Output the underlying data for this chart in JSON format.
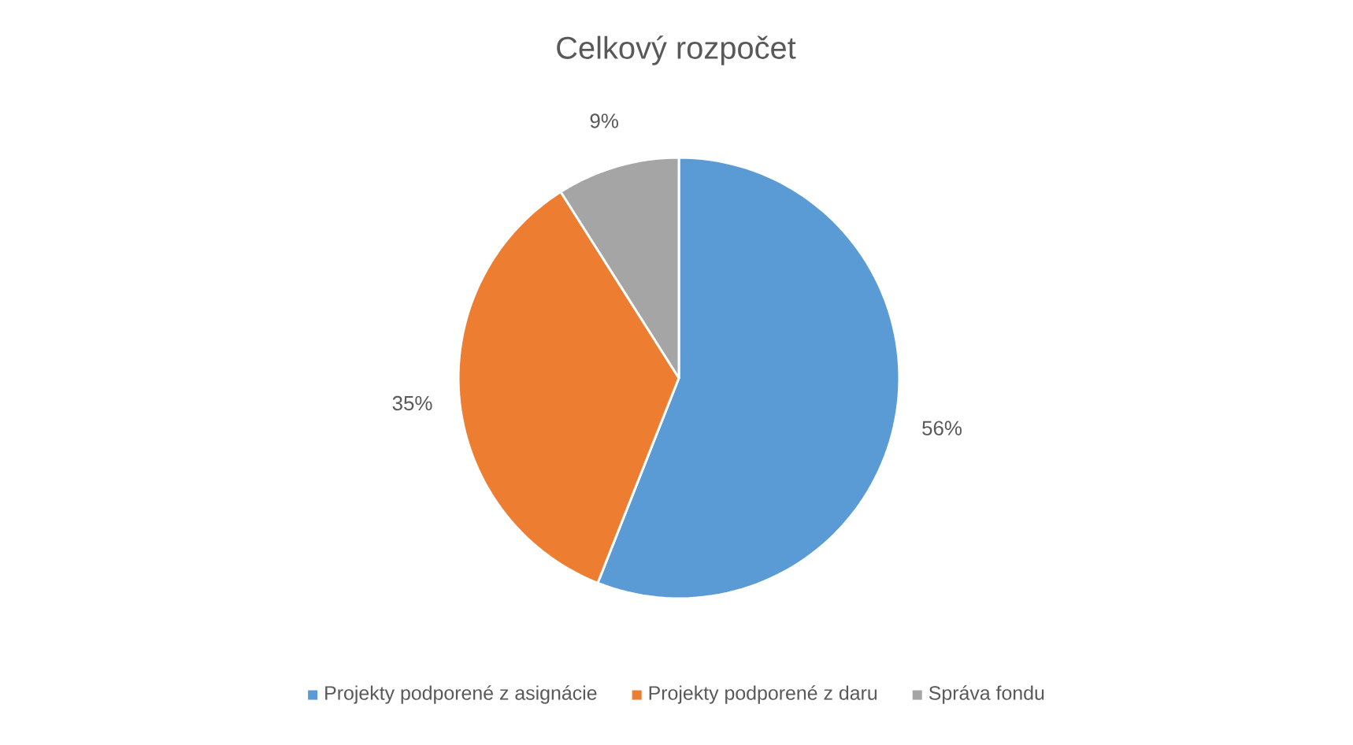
{
  "chart_data": {
    "type": "pie",
    "title": "Celkový rozpočet",
    "categories": [
      "Projekty podporené z asignácie",
      "Projekty podporené z daru",
      "Správa fondu"
    ],
    "values": [
      56,
      35,
      9
    ],
    "value_labels": [
      "56%",
      "35%",
      "9%"
    ],
    "colors": [
      "#5b9bd5",
      "#ed7d31",
      "#a5a5a5"
    ],
    "legend": "bottom"
  }
}
